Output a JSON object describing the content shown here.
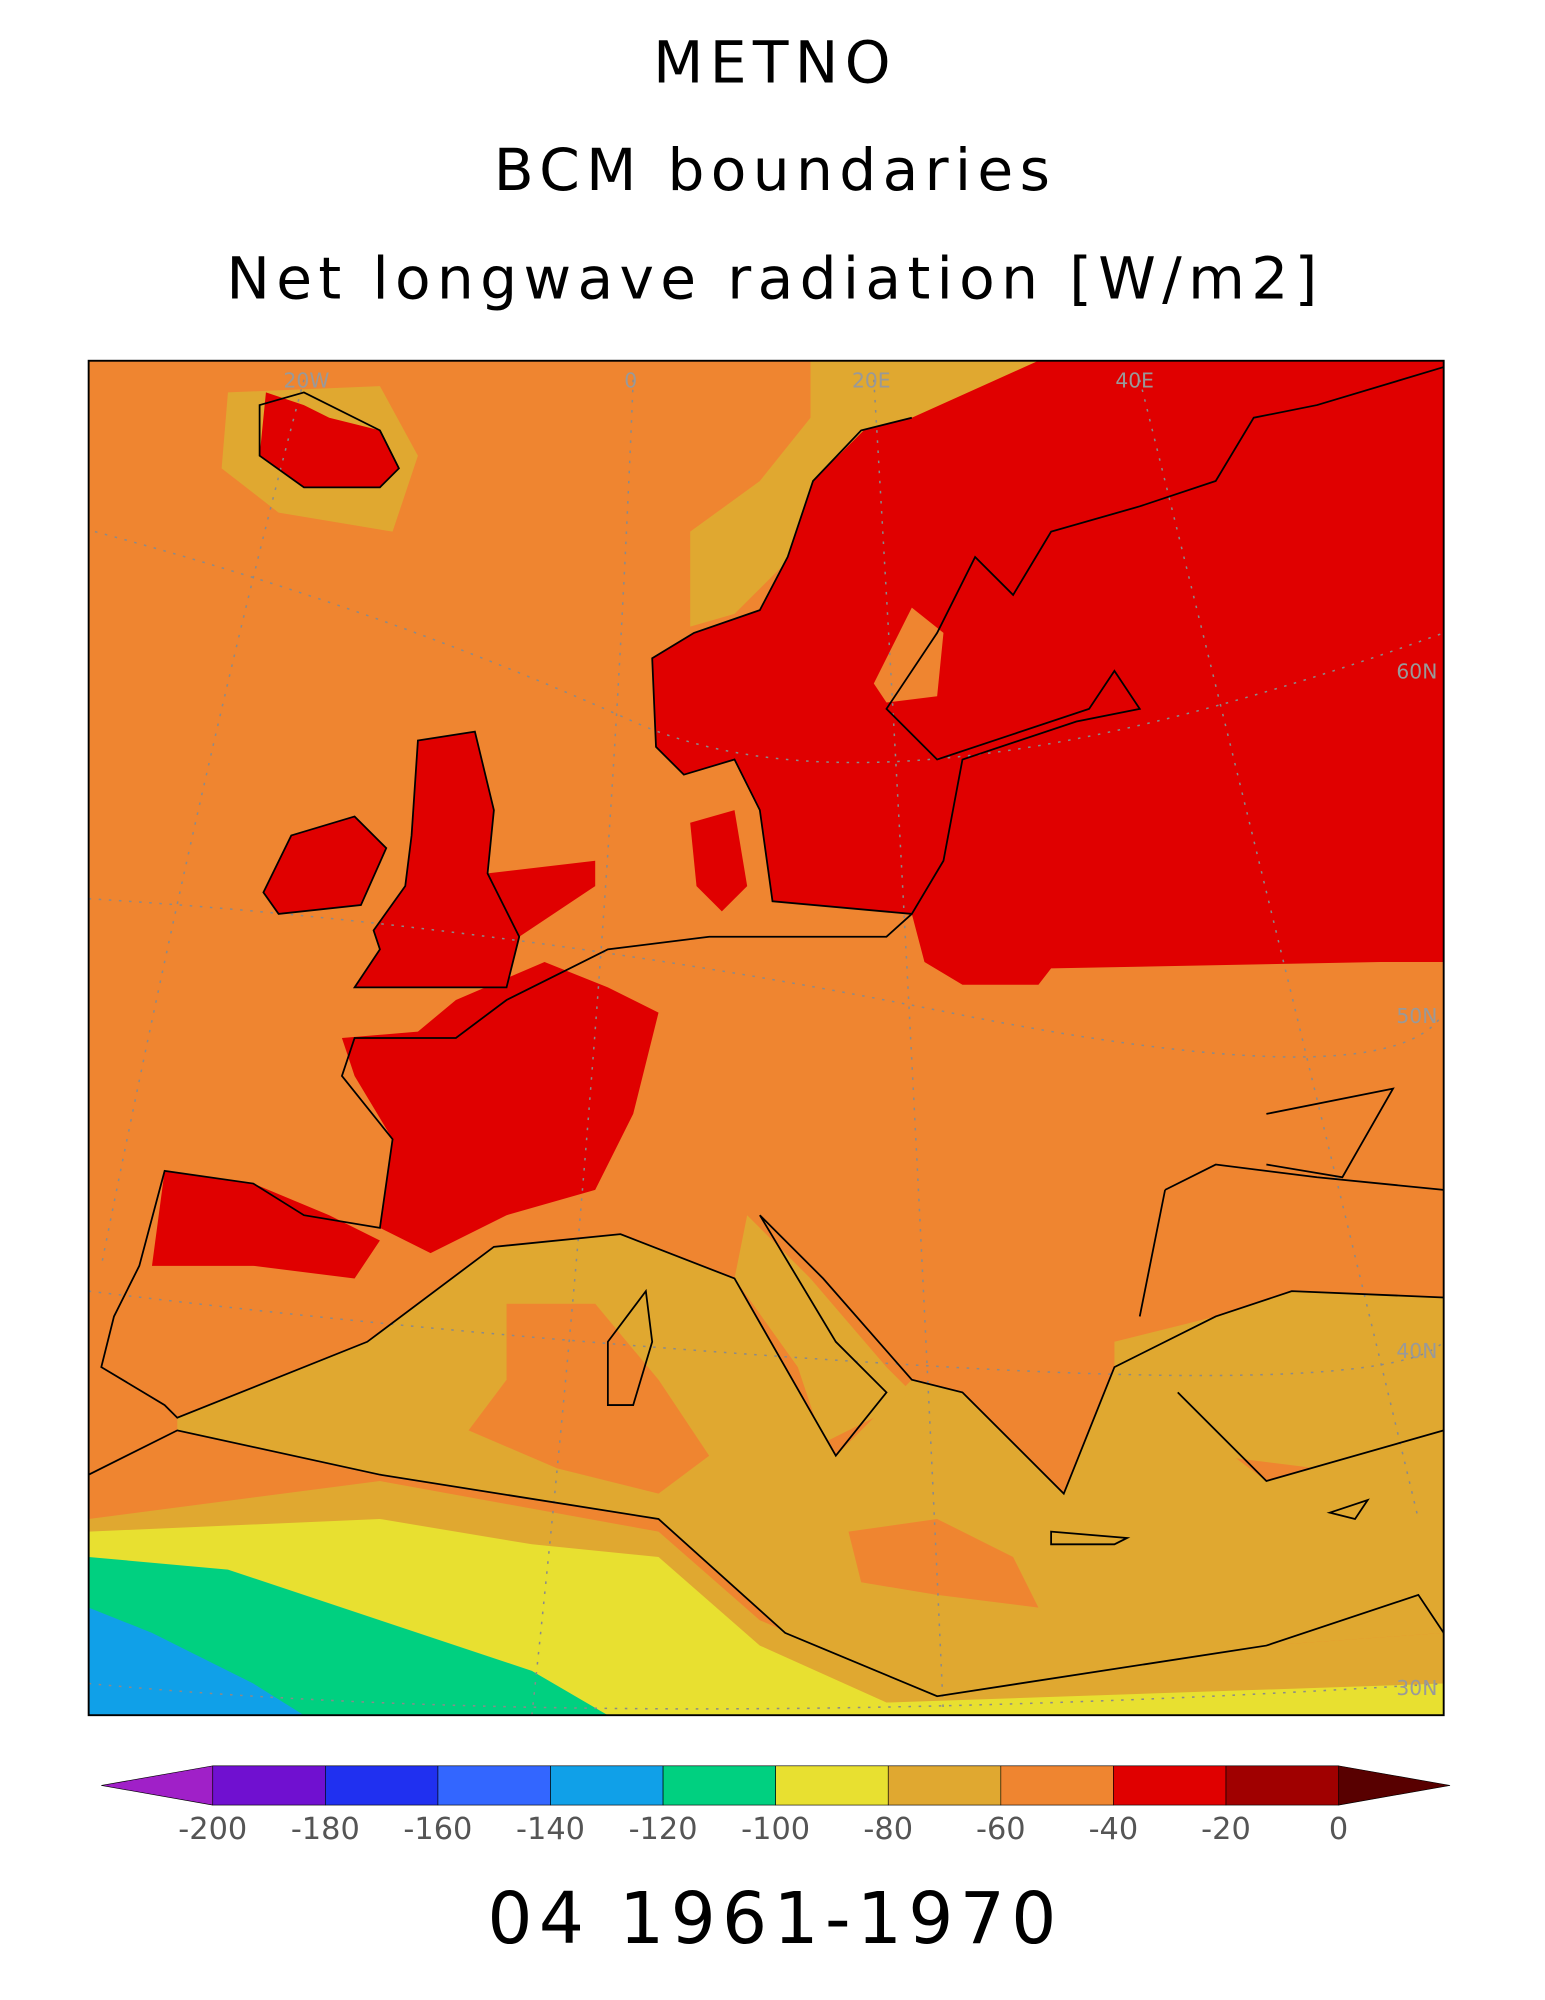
{
  "header": {
    "lines": [
      "METNO",
      "BCM boundaries",
      "Net longwave radiation [W/m2]"
    ]
  },
  "map": {
    "lon_labels": [
      "20W",
      "0",
      "20E",
      "40E"
    ],
    "lat_labels": [
      "60N",
      "50N",
      "40N",
      "30N"
    ]
  },
  "colorbar": {
    "ticks": [
      -200,
      -180,
      -160,
      -140,
      -120,
      -100,
      -80,
      -60,
      -40,
      -20,
      0
    ],
    "colors": [
      "#7010d0",
      "#2030f0",
      "#3366ff",
      "#10a0e8",
      "#00d080",
      "#e8e030",
      "#e0a830",
      "#ef8530",
      "#e00000",
      "#a00000"
    ],
    "under_color": "#a020c8",
    "over_color": "#580000"
  },
  "footer": "04 1961-1970"
}
